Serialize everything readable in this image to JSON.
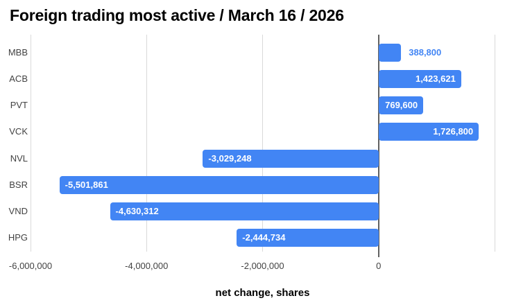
{
  "title": "Foreign trading most active / March 16 / 2026",
  "chart_data": {
    "type": "bar",
    "orientation": "horizontal",
    "title": "Foreign trading most active / March 16 / 2026",
    "xlabel": "net change, shares",
    "ylabel": "",
    "xlim": [
      -6000000,
      2000000
    ],
    "grid": true,
    "legend": "none",
    "categories": [
      "MBB",
      "ACB",
      "PVT",
      "VCK",
      "NVL",
      "BSR",
      "VND",
      "HPG"
    ],
    "values": [
      388800,
      1423621,
      769600,
      1726800,
      -3029248,
      -5501861,
      -4630312,
      -2444734
    ],
    "value_labels": [
      "388,800",
      "1,423,621",
      "769,600",
      "1,726,800",
      "-3,029,248",
      "-5,501,861",
      "-4,630,312",
      "-2,444,734"
    ],
    "x_ticks": [
      {
        "value": -6000000,
        "label": "-6,000,000"
      },
      {
        "value": -4000000,
        "label": "-4,000,000"
      },
      {
        "value": -2000000,
        "label": "-2,000,000"
      },
      {
        "value": 0,
        "label": "0"
      },
      {
        "value": 2000000,
        "label": ""
      }
    ],
    "colors": {
      "bar": "#4285f4",
      "label_inside": "#ffffff",
      "label_outside": "#4285f4",
      "gridline": "#d9d9d9",
      "zero_line": "#616161",
      "axis_text": "#424242",
      "title_text": "#000000"
    }
  }
}
